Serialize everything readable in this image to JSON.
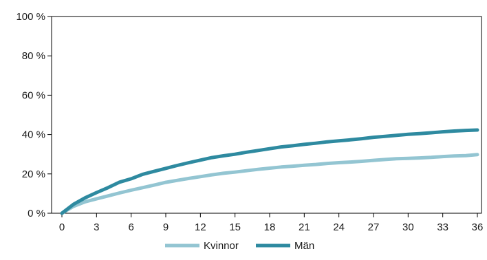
{
  "chart_data": {
    "type": "line",
    "x": [
      0,
      1,
      2,
      3,
      4,
      5,
      6,
      7,
      8,
      9,
      10,
      11,
      12,
      13,
      14,
      15,
      16,
      17,
      18,
      19,
      20,
      21,
      22,
      23,
      24,
      25,
      26,
      27,
      28,
      29,
      30,
      31,
      32,
      33,
      34,
      35,
      36
    ],
    "xticks": [
      0,
      3,
      6,
      9,
      12,
      15,
      18,
      21,
      24,
      27,
      30,
      33,
      36
    ],
    "xlim": [
      0,
      36
    ],
    "ylim": [
      0,
      100
    ],
    "yticks": [
      0,
      20,
      40,
      60,
      80,
      100
    ],
    "ytick_labels": [
      "0 %",
      "20 %",
      "40 %",
      "60 %",
      "80 %",
      "100 %"
    ],
    "grid": false,
    "legend_position": "bottom",
    "series": [
      {
        "name": "Kvinnor",
        "color": "#93c5d2",
        "values": [
          0,
          3.5,
          5.8,
          7.3,
          8.8,
          10.3,
          11.7,
          13.0,
          14.3,
          15.7,
          16.7,
          17.7,
          18.6,
          19.5,
          20.3,
          20.9,
          21.6,
          22.3,
          22.9,
          23.5,
          23.9,
          24.4,
          24.8,
          25.3,
          25.7,
          26.0,
          26.4,
          26.9,
          27.3,
          27.7,
          27.9,
          28.1,
          28.4,
          28.8,
          29.1,
          29.3,
          29.8
        ]
      },
      {
        "name": "Män",
        "color": "#2e8aa0",
        "values": [
          0,
          4.5,
          7.8,
          10.5,
          13.0,
          15.8,
          17.5,
          19.8,
          21.3,
          22.8,
          24.3,
          25.7,
          27.0,
          28.3,
          29.2,
          30.0,
          31.0,
          31.9,
          32.8,
          33.7,
          34.3,
          35.0,
          35.6,
          36.3,
          36.8,
          37.3,
          37.9,
          38.6,
          39.1,
          39.6,
          40.1,
          40.5,
          40.9,
          41.4,
          41.8,
          42.1,
          42.3
        ]
      }
    ]
  }
}
